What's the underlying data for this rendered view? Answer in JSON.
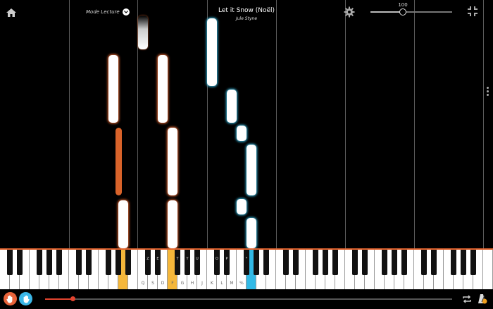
{
  "header": {
    "mode_label": "Mode Lecture",
    "song_title": "Let it Snow (Noël)",
    "song_artist": "Jule Styne",
    "volume_value": "100"
  },
  "volume_level": 0.4,
  "playback_progress": 0.07,
  "keyboard": {
    "white_key_labels": [
      "Q",
      "S",
      "D",
      "F",
      "G",
      "H",
      "J",
      "K",
      "L",
      "M",
      "%"
    ],
    "black_key_labels": [
      "Z",
      "E",
      "T",
      "Y",
      "U",
      "O",
      "P",
      "*"
    ]
  },
  "colors": {
    "left_hand": "#e2642f",
    "right_hand": "#33b3d9",
    "left_hand_key": "#f5b73a",
    "right_hand_key": "#32b9e6"
  },
  "icons": [
    "home-icon",
    "chevron-down-icon",
    "gear-icon",
    "collapse-icon",
    "more-vertical-icon",
    "hand-left-icon",
    "hand-right-icon",
    "loop-icon",
    "metronome-icon"
  ]
}
